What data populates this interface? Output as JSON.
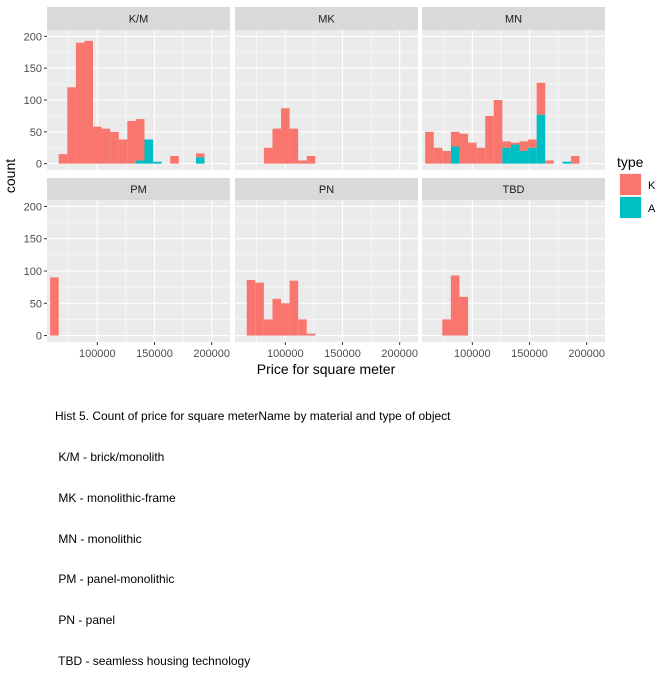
{
  "chart_data": {
    "type": "bar",
    "subtype": "faceted stacked histogram",
    "xlabel": "Price for square meter",
    "ylabel": "count",
    "x_ticks": [
      100000,
      150000,
      200000
    ],
    "x_tick_labels": [
      "100000",
      "150000",
      "200000"
    ],
    "xlim": [
      56000,
      216000
    ],
    "y_ticks": [
      0,
      50,
      100,
      150,
      200
    ],
    "ylim": [
      -10,
      210
    ],
    "grid": true,
    "bin_width": 7500,
    "legend": {
      "title": "type",
      "position": "right",
      "entries": [
        {
          "key": "K",
          "label": "K",
          "color": "#F8766D"
        },
        {
          "key": "A",
          "label": "A",
          "color": "#00BFC4"
        }
      ]
    },
    "facets": [
      {
        "label": "K/M",
        "bins": [
          {
            "x": 70000,
            "K": 15,
            "A": 0
          },
          {
            "x": 77500,
            "K": 120,
            "A": 0
          },
          {
            "x": 85000,
            "K": 190,
            "A": 0
          },
          {
            "x": 92500,
            "K": 193,
            "A": 0
          },
          {
            "x": 100000,
            "K": 58,
            "A": 0
          },
          {
            "x": 107500,
            "K": 55,
            "A": 0
          },
          {
            "x": 115000,
            "K": 50,
            "A": 0
          },
          {
            "x": 122500,
            "K": 38,
            "A": 0
          },
          {
            "x": 130000,
            "K": 67,
            "A": 0
          },
          {
            "x": 137500,
            "K": 65,
            "A": 5
          },
          {
            "x": 145000,
            "K": 0,
            "A": 38
          },
          {
            "x": 152500,
            "K": 0,
            "A": 3
          },
          {
            "x": 160000,
            "K": 0,
            "A": 0
          },
          {
            "x": 167500,
            "K": 12,
            "A": 0
          },
          {
            "x": 175000,
            "K": 0,
            "A": 0
          },
          {
            "x": 182500,
            "K": 0,
            "A": 0
          },
          {
            "x": 190000,
            "K": 6,
            "A": 10
          }
        ]
      },
      {
        "label": "MK",
        "bins": [
          {
            "x": 85000,
            "K": 25,
            "A": 0
          },
          {
            "x": 92500,
            "K": 55,
            "A": 0
          },
          {
            "x": 100000,
            "K": 87,
            "A": 0
          },
          {
            "x": 107500,
            "K": 55,
            "A": 0
          },
          {
            "x": 115000,
            "K": 5,
            "A": 0
          },
          {
            "x": 122500,
            "K": 12,
            "A": 0
          }
        ]
      },
      {
        "label": "MN",
        "bins": [
          {
            "x": 62500,
            "K": 50,
            "A": 0
          },
          {
            "x": 70000,
            "K": 25,
            "A": 0
          },
          {
            "x": 77500,
            "K": 20,
            "A": 0
          },
          {
            "x": 85000,
            "K": 23,
            "A": 27
          },
          {
            "x": 92500,
            "K": 47,
            "A": 0
          },
          {
            "x": 100000,
            "K": 33,
            "A": 0
          },
          {
            "x": 107500,
            "K": 25,
            "A": 0
          },
          {
            "x": 115000,
            "K": 75,
            "A": 0
          },
          {
            "x": 122500,
            "K": 100,
            "A": 0
          },
          {
            "x": 130000,
            "K": 10,
            "A": 25
          },
          {
            "x": 137500,
            "K": 3,
            "A": 30
          },
          {
            "x": 145000,
            "K": 15,
            "A": 20
          },
          {
            "x": 152500,
            "K": 13,
            "A": 25
          },
          {
            "x": 160000,
            "K": 50,
            "A": 77
          },
          {
            "x": 167500,
            "K": 5,
            "A": 0
          },
          {
            "x": 175000,
            "K": 0,
            "A": 0
          },
          {
            "x": 182500,
            "K": 0,
            "A": 3
          },
          {
            "x": 190000,
            "K": 12,
            "A": 0
          }
        ]
      },
      {
        "label": "PM",
        "bins": [
          {
            "x": 62500,
            "K": 90,
            "A": 0
          }
        ]
      },
      {
        "label": "PN",
        "bins": [
          {
            "x": 70000,
            "K": 86,
            "A": 0
          },
          {
            "x": 77500,
            "K": 82,
            "A": 0
          },
          {
            "x": 85000,
            "K": 25,
            "A": 0
          },
          {
            "x": 92500,
            "K": 57,
            "A": 0
          },
          {
            "x": 100000,
            "K": 50,
            "A": 0
          },
          {
            "x": 107500,
            "K": 85,
            "A": 0
          },
          {
            "x": 115000,
            "K": 25,
            "A": 0
          },
          {
            "x": 122500,
            "K": 3,
            "A": 0
          }
        ]
      },
      {
        "label": "TBD",
        "bins": [
          {
            "x": 77500,
            "K": 25,
            "A": 0
          },
          {
            "x": 85000,
            "K": 93,
            "A": 0
          },
          {
            "x": 92500,
            "K": 60,
            "A": 0
          }
        ]
      }
    ]
  },
  "caption": {
    "lines": [
      "Hist 5. Count of price for square meterName by material and type of object",
      " K/M - brick/monolith",
      " MK - monolithic-frame",
      " MN - monolithic",
      " PM - panel-monolithic",
      " PN - panel",
      " TBD - seamless housing technology"
    ]
  }
}
